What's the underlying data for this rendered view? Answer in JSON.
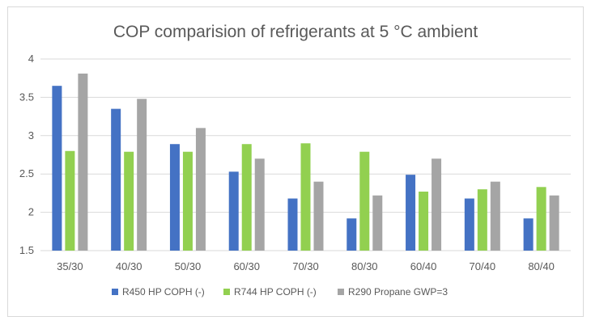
{
  "chart_data": {
    "type": "bar",
    "title": "COP comparision of refrigerants at 5 °C ambient",
    "categories": [
      "35/30",
      "40/30",
      "50/30",
      "60/30",
      "70/30",
      "80/30",
      "60/40",
      "70/40",
      "80/40"
    ],
    "series": [
      {
        "name": "R450 HP COPH (-)",
        "color": "#4472c4",
        "values": [
          3.65,
          3.35,
          2.89,
          2.53,
          2.18,
          1.92,
          2.49,
          2.18,
          1.92
        ]
      },
      {
        "name": "R744 HP COPH (-)",
        "color": "#92d050",
        "values": [
          2.8,
          2.79,
          2.79,
          2.89,
          2.9,
          2.79,
          2.27,
          2.3,
          2.33
        ]
      },
      {
        "name": "R290 Propane GWP=3",
        "color": "#a5a5a5",
        "values": [
          3.81,
          3.48,
          3.1,
          2.7,
          2.4,
          2.22,
          2.7,
          2.4,
          2.22
        ]
      }
    ],
    "ylim": [
      1.5,
      4
    ],
    "yticks": [
      "1.5",
      "2",
      "2.5",
      "3",
      "3.5",
      "4"
    ],
    "grid": true,
    "legend": "bottom"
  }
}
